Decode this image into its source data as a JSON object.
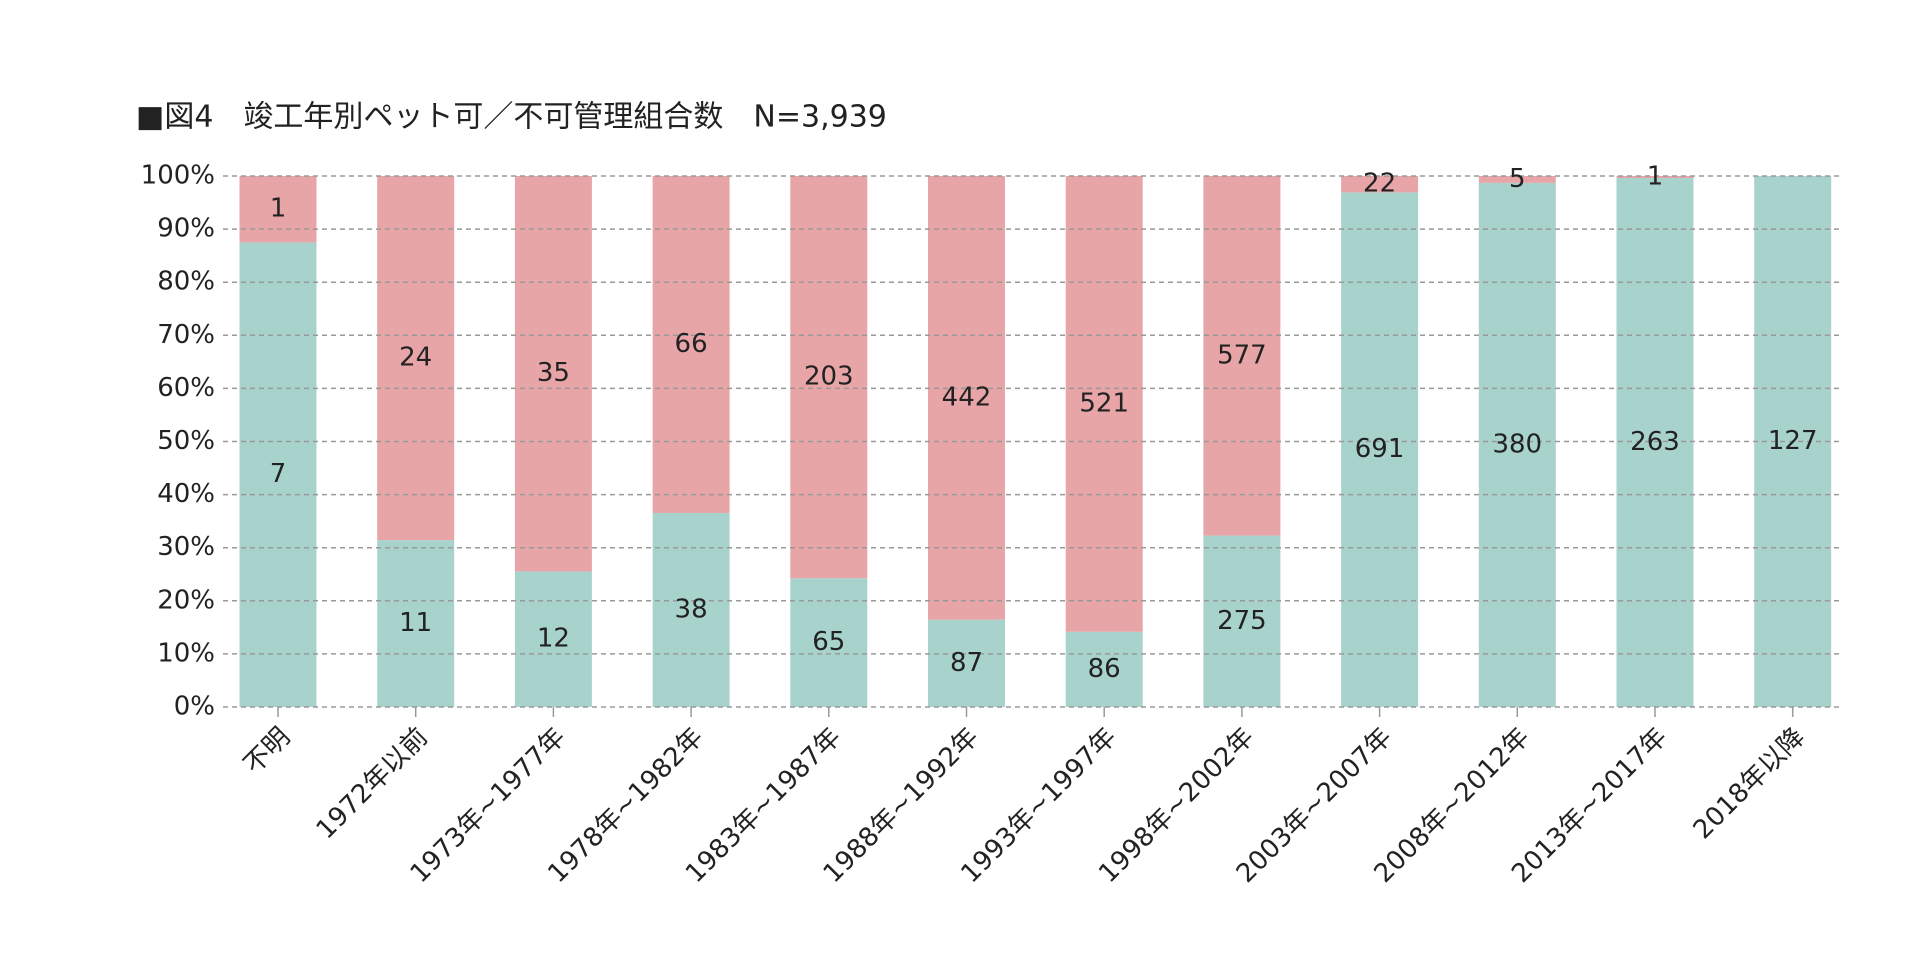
{
  "chart_data": {
    "type": "bar",
    "stacking": "percent",
    "title": "■図4　竣工年別ペット可／不可管理組合数　N=3,939",
    "categories": [
      "不明",
      "1972年以前",
      "1973年~1977年",
      "1978年~1982年",
      "1983年~1987年",
      "1988年~1992年",
      "1993年~1997年",
      "1998年~2002年",
      "2003年~2007年",
      "2008年~2012年",
      "2013年~2017年",
      "2018年以降"
    ],
    "series": [
      {
        "color": "#a8d3cd",
        "values": [
          7,
          11,
          12,
          38,
          65,
          87,
          86,
          275,
          691,
          380,
          263,
          127
        ]
      },
      {
        "color": "#e8a5a8",
        "values": [
          1,
          24,
          35,
          66,
          203,
          442,
          521,
          577,
          22,
          5,
          1,
          0
        ]
      }
    ],
    "ylim": [
      0,
      100
    ],
    "yticks": [
      {
        "value": 0,
        "label": "0%"
      },
      {
        "value": 10,
        "label": "10%"
      },
      {
        "value": 20,
        "label": "20%"
      },
      {
        "value": 30,
        "label": "30%"
      },
      {
        "value": 40,
        "label": "40%"
      },
      {
        "value": 50,
        "label": "50%"
      },
      {
        "value": 60,
        "label": "60%"
      },
      {
        "value": 70,
        "label": "70%"
      },
      {
        "value": 80,
        "label": "80%"
      },
      {
        "value": 90,
        "label": "90%"
      },
      {
        "value": 100,
        "label": "100%"
      }
    ],
    "grid": true
  }
}
